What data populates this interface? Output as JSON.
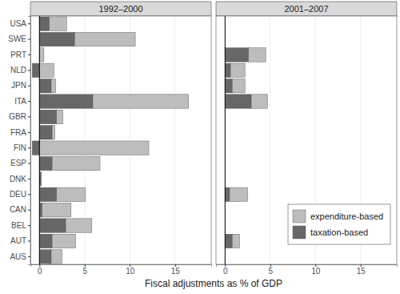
{
  "chart_data": {
    "type": "bar",
    "orientation": "horizontal",
    "stacked": true,
    "grid": true,
    "legend": "lower right",
    "x_label": "Fiscal adjustments as % of GDP",
    "categories": [
      "USA",
      "SWE",
      "PRT",
      "NLD",
      "JPN",
      "ITA",
      "GBR",
      "FRA",
      "FIN",
      "ESP",
      "DNK",
      "DEU",
      "CAN",
      "BEL",
      "AUT",
      "AUS"
    ],
    "series": [
      {
        "name": "taxation-based",
        "color": "#676767"
      },
      {
        "name": "expenditure-based",
        "color": "#bdbdbd"
      }
    ],
    "xlim": [
      -1,
      19
    ],
    "xticks": [
      0,
      5,
      10,
      15
    ],
    "panels": [
      {
        "title": "1992–2000",
        "series": [
          {
            "values": [
              1.1,
              3.9,
              0,
              -0.8,
              1.3,
              5.9,
              1.9,
              1.4,
              -0.8,
              1.4,
              0.2,
              1.9,
              0.3,
              2.9,
              1.4,
              1.3
            ]
          },
          {
            "values": [
              1.9,
              6.7,
              0.5,
              1.6,
              0.5,
              10.6,
              0.7,
              0.3,
              12.1,
              5.3,
              0,
              3.2,
              3.2,
              2.9,
              2.6,
              1.2
            ]
          }
        ]
      },
      {
        "title": "2001–2007",
        "series": [
          {
            "values": [
              0,
              0,
              2.6,
              0.6,
              0.8,
              2.9,
              0,
              0,
              0,
              0,
              0,
              0.5,
              0,
              0,
              0.8,
              0
            ]
          },
          {
            "values": [
              0,
              0,
              1.9,
              1.6,
              1.4,
              1.8,
              0,
              0,
              0,
              0,
              0,
              2.0,
              0,
              0,
              0.8,
              0
            ]
          }
        ]
      }
    ]
  }
}
